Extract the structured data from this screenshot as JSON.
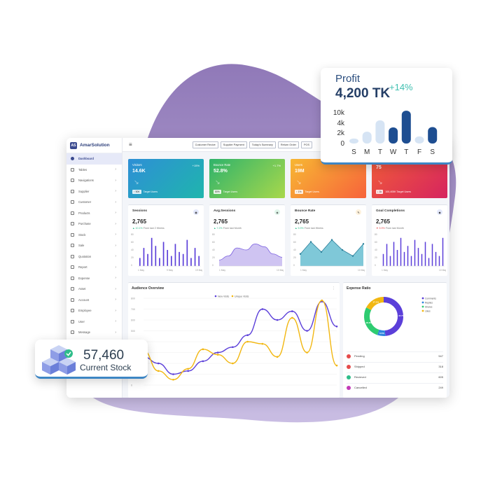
{
  "app": {
    "name": "AmarSolution",
    "logo_text": "AS"
  },
  "sidebar": {
    "items": [
      {
        "label": "Dashboard",
        "active": true
      },
      {
        "label": "Tables"
      },
      {
        "label": "Navigations"
      },
      {
        "label": "Supplier"
      },
      {
        "label": "Customer"
      },
      {
        "label": "Products"
      },
      {
        "label": "Purchase"
      },
      {
        "label": "Stock"
      },
      {
        "label": "Sale"
      },
      {
        "label": "Quotation"
      },
      {
        "label": "Report"
      },
      {
        "label": "Expense"
      },
      {
        "label": "Asset"
      },
      {
        "label": "Account"
      },
      {
        "label": "Employee"
      },
      {
        "label": "User"
      },
      {
        "label": "Message"
      }
    ]
  },
  "topbar": {
    "menu_icon": "≡",
    "buttons": [
      "Customer Recive",
      "Supplier Payment",
      "Today's Summary",
      "Return Order",
      "POS"
    ]
  },
  "stat_cards": [
    {
      "label": "Visitors",
      "value": "14.6K",
      "change": "+15%",
      "chip": "↑ 50K",
      "foot": "Target Users",
      "colors": [
        "#2e8fd6",
        "#1fb5ad"
      ]
    },
    {
      "label": "Bounce Rate",
      "value": "52.8%",
      "change": "+1.7%",
      "chip": "80%",
      "foot": "Target Users",
      "colors": [
        "#2fb36b",
        "#a8d84b"
      ]
    },
    {
      "label": "Users",
      "value": "19M",
      "change": "",
      "chip": "↑ 1%",
      "foot": "Target Users",
      "colors": [
        "#f7b733",
        "#f7633b"
      ]
    },
    {
      "label": "",
      "value": "75",
      "change": "",
      "chip": "↓ 1k",
      "foot": "100,405K Target Users",
      "colors": [
        "#f05a3a",
        "#d6245f"
      ]
    }
  ],
  "metric_cards": [
    {
      "title": "Sessions",
      "value": "2,765",
      "delta": "▲ 10.1%",
      "period": "From last 2 Weeks",
      "delta_dir": "up",
      "chart": "bar",
      "x_labels": [
        "1 May",
        "9 May",
        "19 May"
      ],
      "y_labels": [
        "80",
        "60",
        "40",
        "20",
        "0"
      ],
      "values": [
        20,
        45,
        30,
        70,
        50,
        20,
        60,
        40,
        25,
        55,
        35,
        30,
        65,
        20,
        45,
        25
      ]
    },
    {
      "title": "Avg.Sessions",
      "value": "2,765",
      "delta": "▲ 7.2%",
      "period": "From last Month",
      "delta_dir": "up",
      "chart": "area",
      "x_labels": [
        "1 May",
        "10 May"
      ],
      "y_labels": [
        "80",
        "60",
        "40",
        "20",
        "0"
      ],
      "values": [
        15,
        25,
        45,
        40,
        55,
        48,
        30,
        22
      ]
    },
    {
      "title": "Bounce Rate",
      "value": "2,765",
      "delta": "▲ 5.9%",
      "period": "From last Weeks",
      "delta_dir": "up",
      "chart": "area-line",
      "x_labels": [
        "1 May",
        "10 May"
      ],
      "y_labels": [
        "80",
        "60",
        "40",
        "20",
        "0"
      ],
      "values": [
        30,
        60,
        35,
        65,
        40,
        25,
        55
      ]
    },
    {
      "title": "Goal Completions",
      "value": "2,765",
      "delta": "▼ 5.9%",
      "period": "From last Month",
      "delta_dir": "down",
      "chart": "bar",
      "x_labels": [
        "1 May",
        "10 May"
      ],
      "y_labels": [
        "80",
        "60",
        "40",
        "20",
        "0"
      ],
      "values": [
        30,
        55,
        25,
        60,
        40,
        70,
        35,
        50,
        25,
        65,
        45,
        30,
        60,
        20,
        55,
        35,
        25,
        70
      ]
    }
  ],
  "audience": {
    "title": "Audience Overview",
    "legend": [
      "New Visits",
      "Unique Visits"
    ],
    "y_labels": [
      "800",
      "700",
      "600",
      "500",
      "400",
      "300",
      "200",
      "100",
      "0"
    ],
    "series": [
      {
        "name": "New Visits",
        "color": "#5b3fd9",
        "values": [
          260,
          200,
          100,
          130,
          220,
          300,
          350,
          460,
          700,
          600,
          680,
          500,
          770,
          540
        ]
      },
      {
        "name": "Unique Visits",
        "color": "#f2b711",
        "values": [
          320,
          130,
          50,
          150,
          330,
          280,
          200,
          400,
          380,
          260,
          620,
          300,
          780,
          180
        ]
      }
    ]
  },
  "expense": {
    "title": "Expense Ratio",
    "legend": [
      {
        "label": "Comments",
        "color": "#5b3fd9"
      },
      {
        "label": "Replies",
        "color": "#2e86de"
      },
      {
        "label": "Shares",
        "color": "#2ecc71"
      },
      {
        "label": "Likes",
        "color": "#f2b711"
      }
    ],
    "slices": [
      {
        "label": "47.7%",
        "value": 47.7,
        "color": "#5b3fd9"
      },
      {
        "label": "6.5%",
        "value": 6.5,
        "color": "#2e86de"
      },
      {
        "label": "26.8%",
        "value": 26.8,
        "color": "#2ecc71"
      },
      {
        "label": "17.1%",
        "value": 17.1,
        "color": "#f2b711"
      }
    ],
    "rows": [
      {
        "label": "Pending",
        "value": "547",
        "color": "#e54b4b"
      },
      {
        "label": "Shipped",
        "value": "318",
        "color": "#e54b4b"
      },
      {
        "label": "Recieved",
        "value": "605",
        "color": "#2ebd8a"
      },
      {
        "label": "Cancelled",
        "value": "249",
        "color": "#c23ab8"
      }
    ]
  },
  "profit": {
    "label": "Profit",
    "value": "4,200 TK",
    "change": "+14%",
    "chart_data": {
      "type": "bar",
      "categories": [
        "S",
        "M",
        "T",
        "W",
        "T",
        "F",
        "S"
      ],
      "values": [
        1.4,
        3.3,
        6.5,
        4.5,
        9.2,
        2.0,
        4.6
      ],
      "y_ticks": [
        "10k",
        "4k",
        "2k",
        "0"
      ],
      "highlight": [
        0,
        0,
        0,
        1,
        1,
        0,
        1
      ],
      "colors": {
        "dark": "#1e4e91",
        "light": "#d6e4f4"
      }
    }
  },
  "stock": {
    "value": "57,460",
    "label": "Current Stock"
  }
}
